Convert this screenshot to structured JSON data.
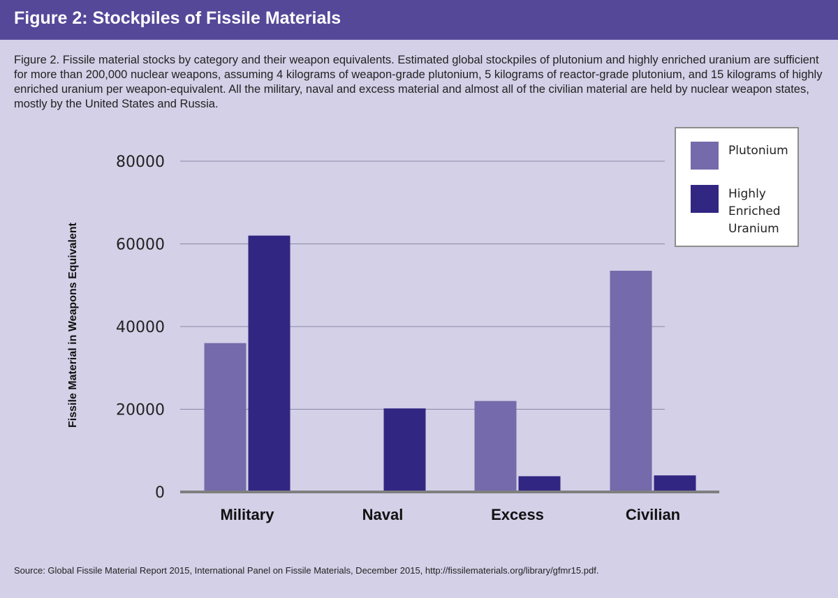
{
  "header": {
    "title": "Figure 2: Stockpiles of Fissile Materials"
  },
  "caption": "Figure 2. Fissile material stocks by category and their weapon equivalents. Estimated global stockpiles of plutonium and highly enriched uranium are sufficient for more than 200,000 nuclear weapons, assuming 4 kilograms of weapon-grade plutonium, 5 kilograms of reactor-grade plutonium, and 15 kilograms of highly enriched uranium per weapon-equivalent. All the military, naval and excess material and almost all of the civilian material are held by nuclear weapon states, mostly by the United States and Russia.",
  "source": "Source: Global Fissile Material Report 2015, International Panel on Fissile Materials, December 2015, http://fissilematerials.org/library/gfmr15.pdf.",
  "chart_data": {
    "type": "bar",
    "title": "",
    "xlabel": "",
    "ylabel": "Fissile Material in Weapons Equivalent",
    "categories": [
      "Military",
      "Naval",
      "Excess",
      "Civilian"
    ],
    "series": [
      {
        "name": "Plutonium",
        "color": "#756aab",
        "values": [
          36000,
          0,
          22000,
          53500
        ]
      },
      {
        "name": "Highly Enriched Uranium",
        "color": "#312682",
        "values": [
          62000,
          20200,
          3800,
          4000
        ]
      }
    ],
    "ylim": [
      0,
      80000
    ],
    "yticks": [
      "0",
      "20000",
      "40000",
      "60000",
      "80000"
    ],
    "grid": true,
    "legend_position": "top-right"
  },
  "legend": {
    "items": [
      {
        "label_lines": [
          "Plutonium"
        ]
      },
      {
        "label_lines": [
          "Highly",
          "Enriched",
          "Uranium"
        ]
      }
    ]
  }
}
